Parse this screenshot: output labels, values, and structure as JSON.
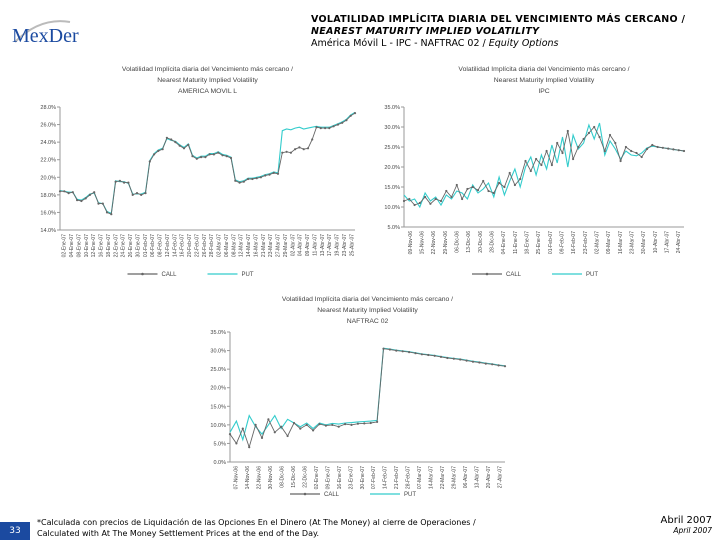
{
  "logo": {
    "text": "MexDer"
  },
  "header": {
    "line1": "VOLATILIDAD IMPLÍCITA DIARIA DEL VENCIMIENTO MÁS CERCANO /",
    "line2": "NEAREST MATURITY IMPLIED VOLATILITY",
    "line3_main": "América Móvil L - IPC - NAFTRAC 02 / ",
    "line3_italic": "Equity Options"
  },
  "colors": {
    "call": "#666666",
    "put": "#33cccc",
    "axis": "#999999",
    "badge": "#1b4aa0"
  },
  "chart_data": [
    {
      "type": "line",
      "title": "Volatilidad Implícita diaria del Vencimiento más cercano / Nearest Maturity Implied Volatility AMERICA MOVIL L",
      "title_lines": [
        "Volatilidad Implícita diaria del Vencimiento más cercano /",
        "Nearest Maturity Implied Volatility",
        "AMERICA MOVIL L"
      ],
      "yticks": [
        "28.0%",
        "26.0%",
        "24.0%",
        "22.0%",
        "20.0%",
        "18.0%",
        "16.0%",
        "14.0%"
      ],
      "ylim": [
        14,
        28
      ],
      "xticks": [
        "02-Ene-07",
        "04-Ene-07",
        "08-Ene-07",
        "10-Ene-07",
        "12-Ene-07",
        "16-Ene-07",
        "18-Ene-07",
        "22-Ene-07",
        "24-Ene-07",
        "26-Ene-07",
        "30-Ene-07",
        "01-Feb-07",
        "06-Feb-07",
        "08-Feb-07",
        "12-Feb-07",
        "14-Feb-07",
        "16-Feb-07",
        "20-Feb-07",
        "22-Feb-07",
        "26-Feb-07",
        "28-Feb-07",
        "02-Mar-07",
        "06-Mar-07",
        "08-Mar-07",
        "12-Mar-07",
        "14-Mar-07",
        "16-Mar-07",
        "21-Mar-07",
        "23-Mar-07",
        "27-Mar-07",
        "29-Mar-07",
        "02-Abr-07",
        "04-Abr-07",
        "09-Abr-07",
        "11-Abr-07",
        "13-Abr-07",
        "17-Abr-07",
        "19-Abr-07",
        "23-Abr-07",
        "25-Abr-07"
      ],
      "legend": [
        "CALL",
        "PUT"
      ],
      "series": [
        {
          "name": "CALL",
          "values": [
            18.4,
            18.4,
            18.2,
            18.3,
            17.4,
            17.3,
            17.6,
            18.0,
            18.3,
            17.0,
            17.0,
            16.0,
            15.8,
            19.5,
            19.6,
            19.4,
            19.4,
            18.0,
            18.2,
            18.0,
            18.2,
            21.8,
            22.6,
            23.0,
            23.2,
            24.5,
            24.3,
            24.0,
            23.6,
            23.3,
            23.7,
            22.4,
            22.1,
            22.3,
            22.3,
            22.6,
            22.6,
            22.8,
            22.5,
            22.4,
            22.2,
            19.6,
            19.4,
            19.5,
            19.8,
            19.8,
            19.9,
            20.0,
            20.2,
            20.3,
            20.5,
            20.4,
            22.8,
            22.9,
            22.8,
            23.2,
            23.4,
            23.2,
            23.3,
            24.3,
            25.7,
            25.6,
            25.6,
            25.6,
            25.8,
            26.0,
            26.2,
            26.5,
            27.0,
            27.3
          ]
        },
        {
          "name": "PUT",
          "values": [
            18.5,
            18.4,
            18.3,
            18.3,
            17.5,
            17.4,
            17.7,
            18.1,
            18.2,
            17.1,
            17.0,
            16.1,
            15.9,
            19.6,
            19.5,
            19.5,
            19.3,
            18.1,
            18.1,
            18.1,
            18.3,
            21.9,
            22.7,
            23.1,
            23.3,
            24.4,
            24.2,
            24.1,
            23.7,
            23.4,
            23.8,
            22.5,
            22.2,
            22.4,
            22.4,
            22.7,
            22.7,
            22.9,
            22.6,
            22.5,
            22.3,
            19.7,
            19.5,
            19.6,
            19.9,
            19.9,
            20.0,
            20.1,
            20.3,
            20.4,
            20.6,
            20.5,
            25.3,
            25.5,
            25.4,
            25.6,
            25.7,
            25.5,
            25.6,
            25.7,
            25.8,
            25.7,
            25.7,
            25.7,
            25.9,
            26.1,
            26.3,
            26.6,
            27.1,
            27.4
          ]
        }
      ]
    },
    {
      "type": "line",
      "title": "Volatilidad Implícita diaria del Vencimiento más cercano / Nearest Maturity Implied Volatility IPC",
      "title_lines": [
        "Volatilidad Implícita diaria del Vencimiento más cercano /",
        "Nearest Maturity Implied Volatility",
        "IPC"
      ],
      "yticks": [
        "35.0%",
        "30.0%",
        "25.0%",
        "20.0%",
        "15.0%",
        "10.0%",
        "5.0%"
      ],
      "ylim": [
        5,
        35
      ],
      "xticks": [
        "09-Nov-06",
        "15-Nov-06",
        "22-Nov-06",
        "29-Nov-06",
        "06-Dic-06",
        "13-Dic-06",
        "20-Dic-06",
        "28-Dic-06",
        "04-Ene-07",
        "11-Ene-07",
        "18-Ene-07",
        "25-Ene-07",
        "01-Feb-07",
        "09-Feb-07",
        "16-Feb-07",
        "23-Feb-07",
        "02-Mar-07",
        "09-Mar-07",
        "16-Mar-07",
        "23-Mar-07",
        "30-Mar-07",
        "10-Abr-07",
        "17-Abr-07",
        "24-Abr-07"
      ],
      "legend": [
        "CALL",
        "PUT"
      ],
      "series": [
        {
          "name": "CALL",
          "values": [
            11.5,
            12.0,
            10.5,
            11.0,
            12.5,
            10.8,
            12.0,
            11.5,
            14.0,
            12.5,
            15.5,
            12.0,
            14.5,
            15.0,
            14.2,
            16.5,
            14.0,
            13.5,
            16.0,
            15.0,
            18.5,
            15.5,
            17.0,
            21.5,
            19.0,
            22.0,
            20.5,
            24.0,
            20.5,
            26.0,
            23.5,
            29.0,
            22.0,
            25.0,
            27.0,
            28.5,
            30.0,
            27.5,
            24.0,
            28.0,
            26.0,
            21.5,
            25.0,
            24.0,
            23.5,
            22.5,
            24.5,
            25.5,
            25.0,
            24.8,
            24.6,
            24.4,
            24.2,
            24.0
          ]
        },
        {
          "name": "PUT",
          "values": [
            13.0,
            11.5,
            12.0,
            10.0,
            13.5,
            11.5,
            12.5,
            10.5,
            13.0,
            12.0,
            14.0,
            13.5,
            12.0,
            15.5,
            13.5,
            14.5,
            16.0,
            12.5,
            17.5,
            13.0,
            16.5,
            19.5,
            15.0,
            20.0,
            22.5,
            18.0,
            23.0,
            19.5,
            25.5,
            21.0,
            27.5,
            20.0,
            28.0,
            24.5,
            26.0,
            30.5,
            27.0,
            31.0,
            23.0,
            26.5,
            24.5,
            22.0,
            24.0,
            23.0,
            22.8,
            23.5,
            24.8,
            25.2,
            25.0,
            24.8,
            24.6,
            24.4,
            24.2,
            24.0
          ]
        }
      ]
    },
    {
      "type": "line",
      "title": "Volatilidad Implícita diaria del Vencimiento más cercano / Nearest Maturity Implied Volatility NAFTRAC 02",
      "title_lines": [
        "Volatilidad Implícita diaria del Vencimiento más cercano /",
        "Nearest Maturity Implied Volatility",
        "NAFTRAC 02"
      ],
      "yticks": [
        "35.0%",
        "30.0%",
        "25.0%",
        "20.0%",
        "15.0%",
        "10.0%",
        "5.0%",
        "0.0%"
      ],
      "ylim": [
        0,
        35
      ],
      "xticks": [
        "07-Nov-06",
        "14-Nov-06",
        "22-Nov-06",
        "30-Nov-06",
        "08-Dic-06",
        "15-Dic-06",
        "22-Dic-06",
        "02-Ene-07",
        "09-Ene-07",
        "16-Ene-07",
        "23-Ene-07",
        "30-Ene-07",
        "07-Feb-07",
        "14-Feb-07",
        "21-Feb-07",
        "28-Feb-07",
        "07-Mar-07",
        "14-Mar-07",
        "22-Mar-07",
        "29-Mar-07",
        "06-Abr-07",
        "13-Abr-07",
        "20-Abr-07",
        "27-Abr-07"
      ],
      "legend": [
        "CALL",
        "PUT"
      ],
      "series": [
        {
          "name": "CALL",
          "values": [
            7.5,
            5.0,
            9.0,
            4.0,
            10.0,
            6.5,
            11.5,
            8.0,
            9.5,
            7.0,
            10.5,
            9.0,
            10.0,
            8.5,
            10.2,
            9.8,
            10.0,
            9.5,
            10.2,
            10.0,
            10.3,
            10.4,
            10.5,
            10.8,
            30.5,
            30.3,
            30.0,
            29.8,
            29.6,
            29.3,
            29.0,
            28.8,
            28.6,
            28.3,
            28.0,
            27.8,
            27.6,
            27.3,
            27.0,
            26.8,
            26.5,
            26.3,
            26.0,
            25.8
          ]
        },
        {
          "name": "PUT",
          "values": [
            8.0,
            11.0,
            6.0,
            12.5,
            9.5,
            7.5,
            10.0,
            12.5,
            9.0,
            11.5,
            10.5,
            9.5,
            10.5,
            9.0,
            10.5,
            10.0,
            10.4,
            10.2,
            10.5,
            10.6,
            10.8,
            10.9,
            11.0,
            11.2,
            30.6,
            30.4,
            30.1,
            29.9,
            29.7,
            29.4,
            29.1,
            28.9,
            28.7,
            28.4,
            28.1,
            27.9,
            27.7,
            27.4,
            27.1,
            26.9,
            26.6,
            26.4,
            26.1,
            25.9
          ]
        }
      ]
    }
  ],
  "footer": {
    "page_number": "33",
    "note_line1": "*Calculada con precios de Liquidación de las Opciones En el Dinero (At The Money) al cierre de Operaciones /",
    "note_line2": "Calculated with At The Money Settlement Prices at the end of the Day.",
    "date_es": "Abril 2007",
    "date_en": "April 2007"
  }
}
